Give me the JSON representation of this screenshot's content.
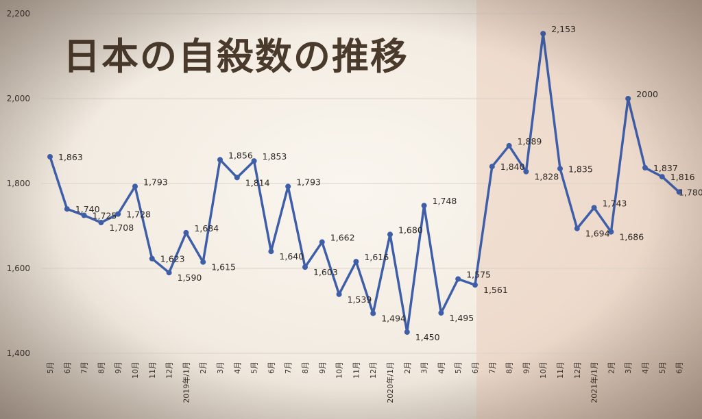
{
  "chart_data": {
    "type": "line",
    "title": "日本の自殺数の推移",
    "ylim": [
      1400,
      2200
    ],
    "yticks": [
      "2,200",
      "2,000",
      "1,800",
      "1,600",
      "1,400"
    ],
    "ytick_values": [
      2200,
      2000,
      1800,
      1600,
      1400
    ],
    "grid": "horizontal",
    "categories": [
      "5月",
      "6月",
      "7月",
      "8月",
      "9月",
      "10月",
      "11月",
      "12月",
      "2019年/1月",
      "2月",
      "3月",
      "4月",
      "5月",
      "6月",
      "7月",
      "8月",
      "9月",
      "10月",
      "11月",
      "12月",
      "2020年/1月",
      "2月",
      "3月",
      "4月",
      "5月",
      "6月",
      "7月",
      "8月",
      "9月",
      "10月",
      "11月",
      "12月",
      "2021年/1月",
      "2月",
      "3月",
      "4月",
      "5月",
      "6月"
    ],
    "values": [
      1863,
      1740,
      1725,
      1708,
      1728,
      1793,
      1623,
      1590,
      1684,
      1615,
      1856,
      1814,
      1853,
      1640,
      1793,
      1603,
      1662,
      1539,
      1616,
      1494,
      1680,
      1450,
      1748,
      1495,
      1575,
      1561,
      1840,
      1889,
      1828,
      2153,
      1835,
      1694,
      1743,
      1686,
      2000,
      1837,
      1816,
      1780
    ],
    "data_labels": [
      "1,863",
      "1,740",
      "1,725",
      "1,708",
      "1,728",
      "1,793",
      "1,623",
      "1,590",
      "1,684",
      "1,615",
      "1,856",
      "1,814",
      "1,853",
      "1,640",
      "1,793",
      "1,603",
      "1,662",
      "1,539",
      "1,616",
      "1,494",
      "1,680",
      "1,450",
      "1,748",
      "1,495",
      "1,575",
      "1,561",
      "1,840",
      "1,889",
      "1,828",
      "2,153",
      "1,835",
      "1,694",
      "1,743",
      "1,686",
      "2000",
      "1,837",
      "1,816",
      "1,780"
    ],
    "highlight_from_index": 25,
    "colors": {
      "line": "#3f5ea8",
      "highlight_band": "#e9c7b4",
      "grid": "#d9d2c8",
      "title": "#4a3a2c"
    }
  }
}
